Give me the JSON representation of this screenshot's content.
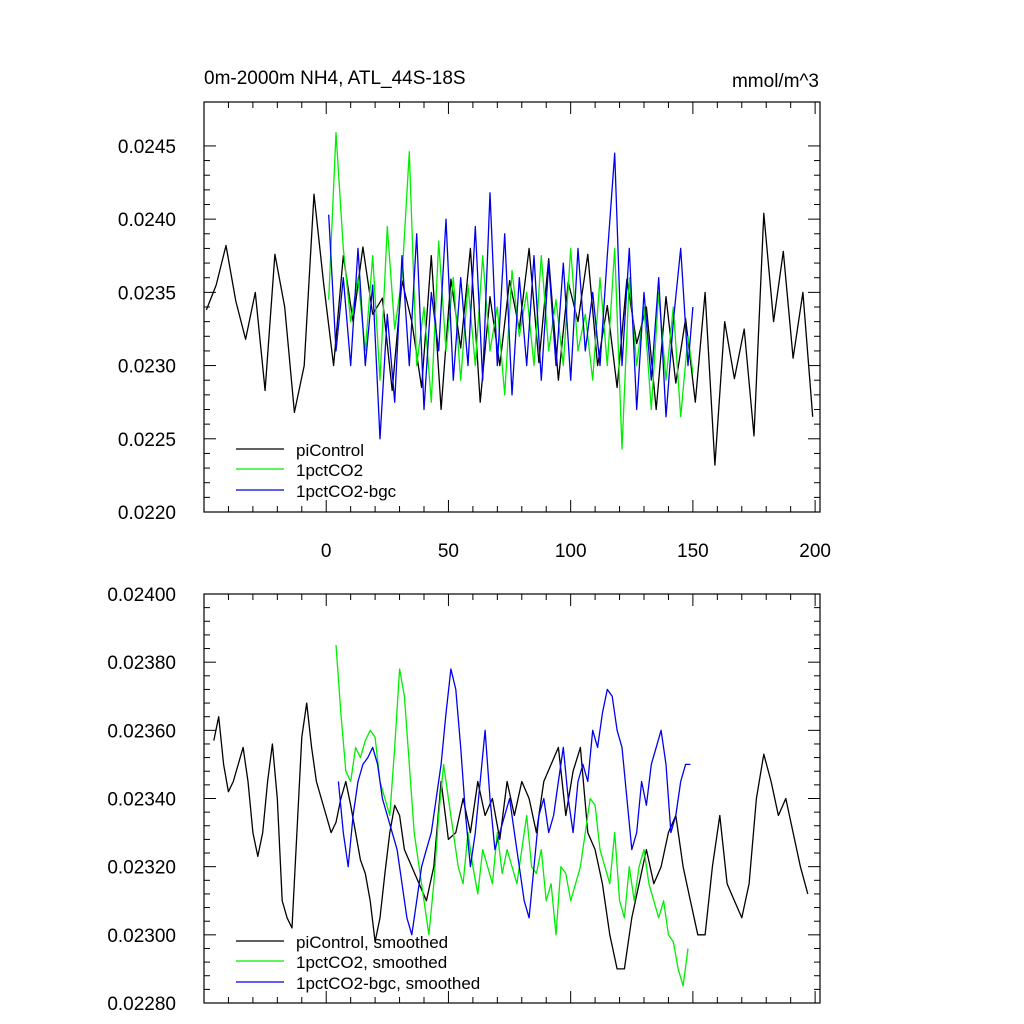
{
  "chart_data": [
    {
      "type": "line",
      "title": "0m-2000m NH4, ATL_44S-18S",
      "units": "mmol/m^3",
      "xlim": [
        -50,
        202
      ],
      "ylim": [
        0.022,
        0.0248
      ],
      "xticks": [
        0,
        50,
        100,
        150,
        200
      ],
      "xtick_labels": [
        "0",
        "50",
        "100",
        "150",
        "200"
      ],
      "yticks": [
        0.022,
        0.0225,
        0.023,
        0.0235,
        0.024,
        0.0245
      ],
      "ytick_labels": [
        "0.0220",
        "0.0225",
        "0.0230",
        "0.0235",
        "0.0240",
        "0.0245"
      ],
      "legend_position": "bottom-left",
      "series": [
        {
          "name": "piControl",
          "color": "#000000",
          "x": [
            -49,
            -45,
            -41,
            -37,
            -33,
            -29,
            -25,
            -21,
            -17,
            -13,
            -9,
            -5,
            -1,
            3,
            7,
            11,
            15,
            19,
            23,
            27,
            31,
            35,
            39,
            43,
            47,
            51,
            55,
            59,
            63,
            67,
            71,
            75,
            79,
            83,
            87,
            91,
            95,
            99,
            103,
            107,
            111,
            115,
            119,
            123,
            127,
            131,
            135,
            139,
            143,
            147,
            151,
            155,
            159,
            163,
            167,
            171,
            175,
            179,
            183,
            187,
            191,
            195,
            199
          ],
          "values": [
            0.02338,
            0.02355,
            0.02382,
            0.02344,
            0.02318,
            0.0235,
            0.02283,
            0.02376,
            0.0234,
            0.02268,
            0.023,
            0.02417,
            0.02355,
            0.023,
            0.02375,
            0.0233,
            0.02381,
            0.02335,
            0.02346,
            0.02283,
            0.02358,
            0.0233,
            0.02285,
            0.02375,
            0.0227,
            0.02359,
            0.02312,
            0.0238,
            0.02275,
            0.02347,
            0.023,
            0.02358,
            0.02325,
            0.0238,
            0.02302,
            0.02373,
            0.0229,
            0.02357,
            0.0233,
            0.02376,
            0.023,
            0.02341,
            0.02285,
            0.02359,
            0.02315,
            0.0234,
            0.0227,
            0.02347,
            0.02288,
            0.02332,
            0.02275,
            0.0235,
            0.02232,
            0.0233,
            0.02291,
            0.02325,
            0.02252,
            0.02404,
            0.0233,
            0.02378,
            0.02305,
            0.0235,
            0.02265
          ]
        },
        {
          "name": "1pctCO2",
          "color": "#00ee00",
          "x": [
            1,
            4,
            7,
            10,
            13,
            16,
            19,
            22,
            25,
            28,
            31,
            34,
            37,
            40,
            43,
            46,
            49,
            52,
            55,
            58,
            61,
            64,
            67,
            70,
            73,
            76,
            79,
            82,
            85,
            88,
            91,
            94,
            97,
            100,
            103,
            106,
            109,
            112,
            115,
            118,
            121,
            124,
            127,
            130,
            133,
            136,
            139,
            142,
            145,
            148,
            150
          ],
          "values": [
            0.02345,
            0.02459,
            0.0238,
            0.0233,
            0.0236,
            0.0231,
            0.02375,
            0.0229,
            0.02395,
            0.02325,
            0.0236,
            0.02446,
            0.023,
            0.0234,
            0.02275,
            0.02385,
            0.0231,
            0.0236,
            0.0229,
            0.02355,
            0.023,
            0.02375,
            0.0231,
            0.0234,
            0.0228,
            0.02365,
            0.0232,
            0.0235,
            0.023,
            0.02375,
            0.0231,
            0.02345,
            0.023,
            0.0238,
            0.0231,
            0.02335,
            0.0229,
            0.0236,
            0.023,
            0.0238,
            0.02243,
            0.0236,
            0.023,
            0.0234,
            0.0227,
            0.0235,
            0.0229,
            0.0234,
            0.02265,
            0.0232,
            0.02295
          ]
        },
        {
          "name": "1pctCO2-bgc",
          "color": "#0000ee",
          "x": [
            1,
            4,
            7,
            10,
            13,
            16,
            19,
            22,
            25,
            28,
            31,
            34,
            37,
            40,
            43,
            46,
            49,
            52,
            55,
            58,
            61,
            64,
            67,
            70,
            73,
            76,
            79,
            82,
            85,
            88,
            91,
            94,
            97,
            100,
            103,
            106,
            109,
            112,
            115,
            118,
            121,
            124,
            127,
            130,
            133,
            136,
            139,
            142,
            145,
            148,
            150
          ],
          "values": [
            0.02403,
            0.0231,
            0.0236,
            0.023,
            0.0238,
            0.023,
            0.02355,
            0.0225,
            0.02335,
            0.02275,
            0.02375,
            0.023,
            0.0239,
            0.0227,
            0.0235,
            0.0231,
            0.024,
            0.0229,
            0.0236,
            0.023,
            0.02395,
            0.0229,
            0.02418,
            0.023,
            0.0239,
            0.0228,
            0.0236,
            0.023,
            0.02375,
            0.0229,
            0.0237,
            0.023,
            0.0237,
            0.0229,
            0.0238,
            0.0231,
            0.0235,
            0.023,
            0.02375,
            0.02445,
            0.023,
            0.0238,
            0.0227,
            0.0235,
            0.0229,
            0.0236,
            0.02265,
            0.0233,
            0.0238,
            0.023,
            0.0234
          ]
        }
      ]
    },
    {
      "type": "line",
      "title": "",
      "units": "",
      "xlim": [
        -50,
        202
      ],
      "ylim": [
        0.0228,
        0.024
      ],
      "xticks": [
        0,
        50,
        100,
        150,
        200
      ],
      "xtick_labels": [],
      "yticks": [
        0.0228,
        0.023,
        0.0232,
        0.0234,
        0.0236,
        0.0238,
        0.024
      ],
      "ytick_labels": [
        "0.02280",
        "0.02300",
        "0.02320",
        "0.02340",
        "0.02360",
        "0.02380",
        "0.02400"
      ],
      "legend_position": "bottom-left",
      "series": [
        {
          "name": "piControl, smoothed",
          "color": "#000000",
          "x": [
            -46,
            -44,
            -42,
            -40,
            -38,
            -36,
            -34,
            -32,
            -30,
            -28,
            -26,
            -24,
            -22,
            -20,
            -18,
            -16,
            -14,
            -12,
            -10,
            -8,
            -6,
            -4,
            -2,
            0,
            2,
            4,
            6,
            8,
            10,
            12,
            14,
            16,
            18,
            20,
            22,
            24,
            26,
            28,
            30,
            32,
            35,
            38,
            41,
            44,
            47,
            50,
            53,
            56,
            59,
            62,
            65,
            68,
            71,
            74,
            77,
            80,
            83,
            86,
            89,
            92,
            95,
            98,
            101,
            104,
            107,
            110,
            113,
            116,
            119,
            122,
            125,
            128,
            131,
            134,
            137,
            140,
            143,
            146,
            149,
            152,
            155,
            158,
            161,
            164,
            167,
            170,
            173,
            176,
            179,
            182,
            185,
            188,
            191,
            194,
            197
          ],
          "values": [
            0.02357,
            0.02364,
            0.0235,
            0.02342,
            0.02345,
            0.0235,
            0.02355,
            0.02345,
            0.0233,
            0.02323,
            0.0233,
            0.02345,
            0.02356,
            0.0234,
            0.0231,
            0.02305,
            0.02302,
            0.0233,
            0.02358,
            0.02368,
            0.02355,
            0.02345,
            0.0234,
            0.02335,
            0.0233,
            0.02333,
            0.0234,
            0.02345,
            0.02338,
            0.0233,
            0.02322,
            0.02318,
            0.0231,
            0.02298,
            0.02305,
            0.02318,
            0.0233,
            0.02338,
            0.02335,
            0.02325,
            0.0232,
            0.02315,
            0.0231,
            0.0232,
            0.02345,
            0.02328,
            0.0233,
            0.0234,
            0.0233,
            0.02345,
            0.02335,
            0.0234,
            0.02328,
            0.02345,
            0.02335,
            0.02345,
            0.0234,
            0.0233,
            0.02345,
            0.0235,
            0.02355,
            0.02335,
            0.02348,
            0.02355,
            0.0233,
            0.02325,
            0.02315,
            0.023,
            0.0229,
            0.0229,
            0.02305,
            0.02315,
            0.02325,
            0.02315,
            0.0232,
            0.0233,
            0.02335,
            0.0232,
            0.0231,
            0.023,
            0.023,
            0.0232,
            0.02335,
            0.02315,
            0.0231,
            0.02305,
            0.02315,
            0.0234,
            0.02353,
            0.02345,
            0.02335,
            0.0234,
            0.0233,
            0.0232,
            0.02312
          ]
        },
        {
          "name": "1pctCO2, smoothed",
          "color": "#00ee00",
          "x": [
            4,
            6,
            8,
            10,
            12,
            14,
            16,
            18,
            20,
            22,
            24,
            26,
            28,
            30,
            32,
            34,
            36,
            38,
            40,
            42,
            44,
            46,
            48,
            50,
            52,
            54,
            56,
            58,
            60,
            62,
            64,
            66,
            68,
            70,
            72,
            74,
            76,
            78,
            80,
            82,
            84,
            86,
            88,
            90,
            92,
            94,
            96,
            98,
            100,
            102,
            104,
            106,
            108,
            110,
            112,
            114,
            116,
            118,
            120,
            122,
            124,
            126,
            128,
            130,
            132,
            134,
            136,
            138,
            140,
            142,
            144,
            146,
            148
          ],
          "values": [
            0.02385,
            0.02365,
            0.02348,
            0.02345,
            0.02355,
            0.02352,
            0.02357,
            0.0236,
            0.02358,
            0.02345,
            0.0234,
            0.02335,
            0.02355,
            0.02378,
            0.0237,
            0.0235,
            0.0233,
            0.0232,
            0.0231,
            0.023,
            0.02315,
            0.02335,
            0.0235,
            0.0234,
            0.0233,
            0.0232,
            0.02315,
            0.0233,
            0.0232,
            0.02312,
            0.02325,
            0.0232,
            0.02315,
            0.0233,
            0.02318,
            0.02325,
            0.0232,
            0.02315,
            0.02325,
            0.02335,
            0.0232,
            0.02318,
            0.02325,
            0.0231,
            0.02315,
            0.023,
            0.0232,
            0.02318,
            0.0231,
            0.02315,
            0.0232,
            0.0233,
            0.0234,
            0.02338,
            0.02325,
            0.0232,
            0.02315,
            0.0233,
            0.0231,
            0.02305,
            0.0232,
            0.0231,
            0.0232,
            0.02325,
            0.02315,
            0.0231,
            0.02305,
            0.0231,
            0.023,
            0.02298,
            0.0229,
            0.02285,
            0.02296
          ]
        },
        {
          "name": "1pctCO2-bgc, smoothed",
          "color": "#0000ee",
          "x": [
            5,
            7,
            9,
            11,
            13,
            15,
            17,
            19,
            21,
            23,
            25,
            27,
            29,
            31,
            33,
            35,
            37,
            39,
            41,
            43,
            45,
            47,
            49,
            51,
            53,
            55,
            57,
            59,
            61,
            63,
            65,
            67,
            69,
            71,
            73,
            75,
            77,
            79,
            81,
            83,
            85,
            87,
            89,
            91,
            93,
            95,
            97,
            99,
            101,
            103,
            105,
            107,
            109,
            111,
            113,
            115,
            117,
            119,
            121,
            123,
            125,
            127,
            129,
            131,
            133,
            135,
            137,
            139,
            141,
            143,
            145,
            147,
            149
          ],
          "values": [
            0.02345,
            0.0233,
            0.0232,
            0.02335,
            0.02345,
            0.0235,
            0.02352,
            0.02355,
            0.0235,
            0.0234,
            0.02335,
            0.0233,
            0.02325,
            0.02315,
            0.02305,
            0.023,
            0.0231,
            0.0232,
            0.02325,
            0.0233,
            0.0234,
            0.0235,
            0.02365,
            0.02378,
            0.02372,
            0.02355,
            0.02335,
            0.0232,
            0.0233,
            0.02345,
            0.0236,
            0.0234,
            0.02325,
            0.0233,
            0.02335,
            0.0234,
            0.0233,
            0.0232,
            0.0231,
            0.02305,
            0.0232,
            0.02335,
            0.0234,
            0.0233,
            0.02335,
            0.02345,
            0.02355,
            0.0234,
            0.0233,
            0.02345,
            0.0235,
            0.02345,
            0.0236,
            0.02355,
            0.02365,
            0.02372,
            0.0237,
            0.0236,
            0.02355,
            0.0234,
            0.02325,
            0.0233,
            0.02345,
            0.02338,
            0.0235,
            0.02355,
            0.0236,
            0.0235,
            0.0233,
            0.02335,
            0.02345,
            0.0235,
            0.0235
          ]
        }
      ]
    }
  ]
}
